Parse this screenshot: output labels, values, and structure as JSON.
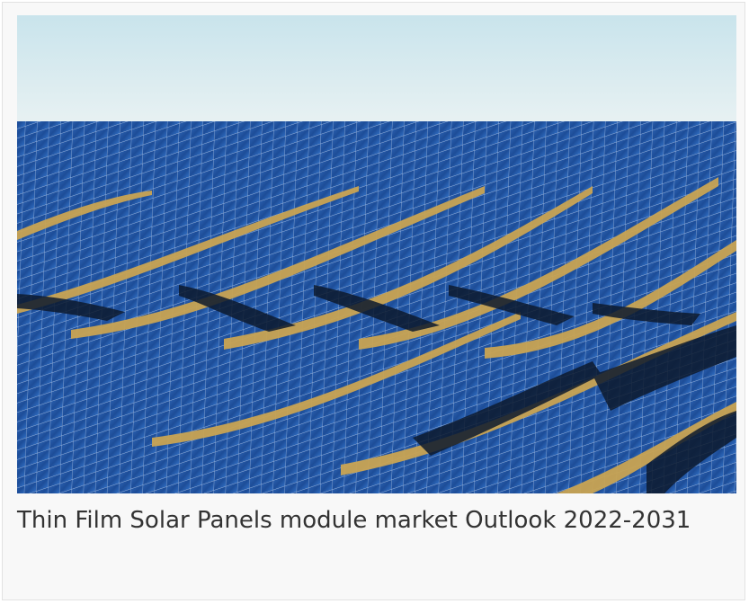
{
  "card": {
    "caption": "Thin Film Solar Panels module market Outlook 2022-2031"
  }
}
